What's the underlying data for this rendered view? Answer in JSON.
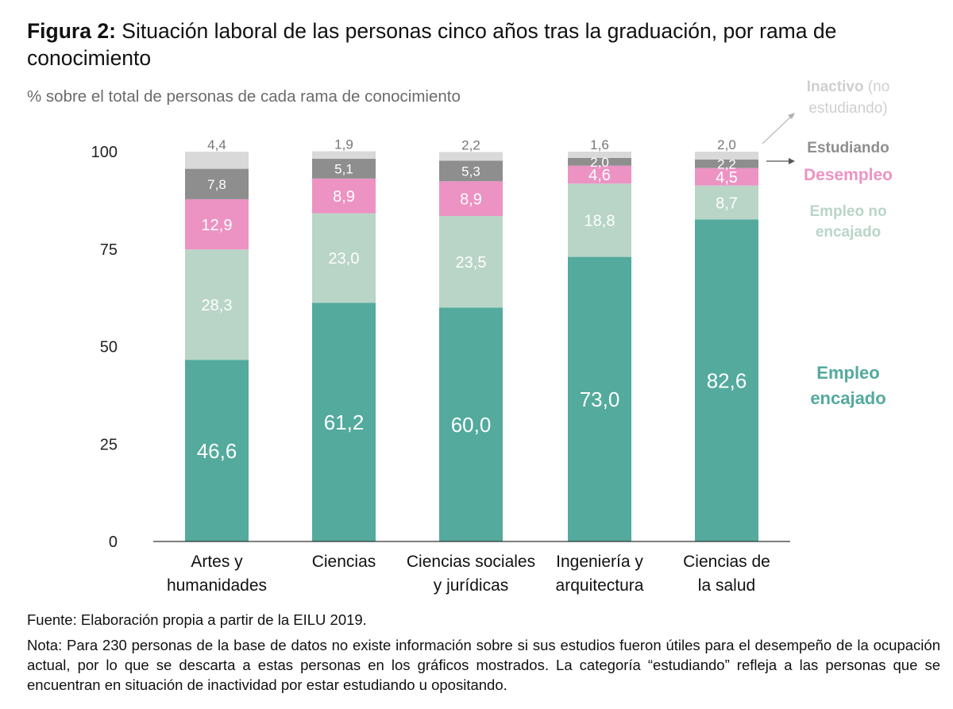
{
  "title": {
    "prefix": "Figura 2:",
    "text": "Situación laboral de las personas cinco años tras la graduación, por rama de conocimiento"
  },
  "subtitle": "% sobre el total de personas de cada rama de conocimiento",
  "source": "Fuente: Elaboración propia a partir de la EILU 2019.",
  "note": "Nota: Para 230 personas de la base de datos no existe información sobre si sus estudios fueron útiles para el desempeño de la ocupación actual, por lo que se descarta a estas personas en los gráficos mostrados. La categoría “estudiando” refleja a las personas que se encuentran en situación de inactividad por estar estudiando u opositando.",
  "chart_data": {
    "type": "bar",
    "stacked": true,
    "title": "Situación laboral de las personas cinco años tras la graduación, por rama de conocimiento",
    "ylabel": "% sobre el total de personas de cada rama de conocimiento",
    "ylim": [
      0,
      100
    ],
    "yticks": [
      0,
      25,
      50,
      75,
      100
    ],
    "categories": [
      [
        "Artes y",
        "humanidades"
      ],
      [
        "Ciencias"
      ],
      [
        "Ciencias sociales",
        "y jurídicas"
      ],
      [
        "Ingeniería y",
        "arquitectura"
      ],
      [
        "Ciencias de",
        "la salud"
      ]
    ],
    "series": [
      {
        "name": "Empleo encajado",
        "legend": [
          "Empleo",
          "encajado"
        ],
        "color": "#53aa9d",
        "label_color": "#ffffff",
        "values": [
          46.6,
          61.2,
          60.0,
          73.0,
          82.6
        ],
        "labels": [
          "46,6",
          "61,2",
          "60,0",
          "73,0",
          "82,6"
        ]
      },
      {
        "name": "Empleo no encajado",
        "legend": [
          "Empleo no",
          "encajado"
        ],
        "color": "#b9d5c8",
        "label_color": "#ffffff",
        "values": [
          28.3,
          23.0,
          23.5,
          18.8,
          8.7
        ],
        "labels": [
          "28,3",
          "23,0",
          "23,5",
          "18,8",
          "8,7"
        ]
      },
      {
        "name": "Desempleo",
        "legend": [
          "Desempleo"
        ],
        "color": "#ec93c3",
        "label_color": "#ffffff",
        "values": [
          12.9,
          8.9,
          8.9,
          4.6,
          4.5
        ],
        "labels": [
          "12,9",
          "8,9",
          "8,9",
          "4,6",
          "4,5"
        ]
      },
      {
        "name": "Estudiando",
        "legend": [
          "Estudiando"
        ],
        "color": "#8e8e8e",
        "label_color": "#ffffff",
        "values": [
          7.8,
          5.1,
          5.3,
          2.0,
          2.2
        ],
        "labels": [
          "7,8",
          "5,1",
          "5,3",
          "2,0",
          "2,2"
        ]
      },
      {
        "name": "Inactivo (no estudiando)",
        "legend": [
          "Inactivo (no",
          "estudiando)"
        ],
        "color": "#d9d9d9",
        "label_color": "#777777",
        "values": [
          4.4,
          1.9,
          2.2,
          1.6,
          2.0
        ],
        "labels": [
          "4,4",
          "1,9",
          "2,2",
          "1,6",
          "2,0"
        ]
      }
    ],
    "legend_placement": "right"
  }
}
